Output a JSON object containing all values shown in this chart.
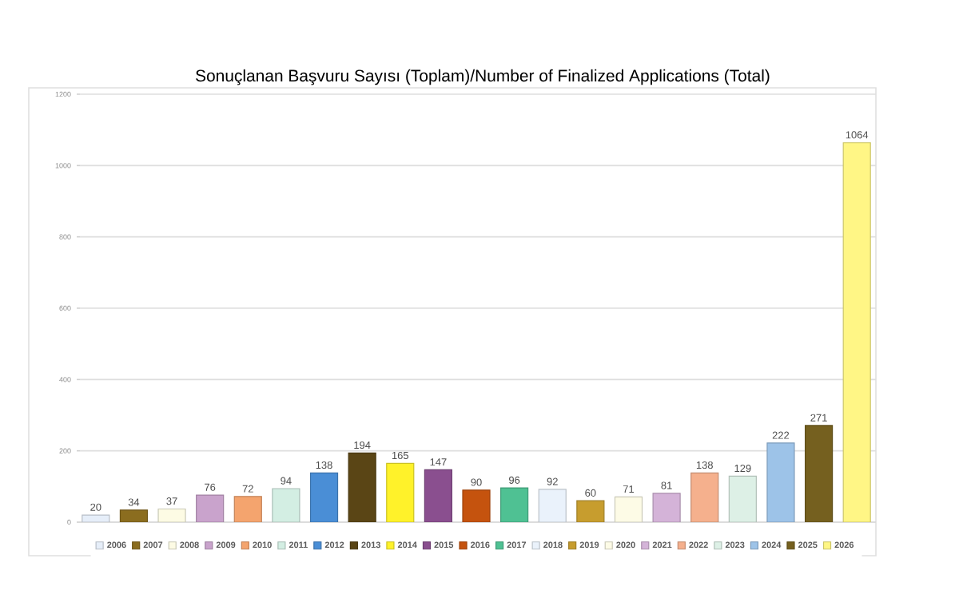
{
  "chart_data": {
    "type": "bar",
    "title": "Sonuçlanan Başvuru Sayısı (Toplam)/Number of Finalized Applications (Total)",
    "categories": [
      null,
      null,
      null,
      null,
      null,
      null,
      null,
      null,
      null,
      null,
      null,
      null,
      null,
      null,
      null,
      null,
      null,
      null,
      null,
      null,
      null
    ],
    "series": [
      {
        "name": "2006",
        "color": "#e6eef9",
        "values": [
          20,
          null,
          null,
          null,
          null,
          null,
          null,
          null,
          null,
          null,
          null,
          null,
          null,
          null,
          null,
          null,
          null,
          null,
          null,
          null,
          null
        ]
      },
      {
        "name": "2007",
        "color": "#8b6d1f",
        "values": [
          null,
          34,
          null,
          null,
          null,
          null,
          null,
          null,
          null,
          null,
          null,
          null,
          null,
          null,
          null,
          null,
          null,
          null,
          null,
          null,
          null
        ]
      },
      {
        "name": "2008",
        "color": "#fdfbe4",
        "values": [
          null,
          null,
          37,
          null,
          null,
          null,
          null,
          null,
          null,
          null,
          null,
          null,
          null,
          null,
          null,
          null,
          null,
          null,
          null,
          null,
          null
        ]
      },
      {
        "name": "2009",
        "color": "#c9a3cc",
        "values": [
          null,
          null,
          null,
          76,
          null,
          null,
          null,
          null,
          null,
          null,
          null,
          null,
          null,
          null,
          null,
          null,
          null,
          null,
          null,
          null,
          null
        ]
      },
      {
        "name": "2010",
        "color": "#f4a46e",
        "values": [
          null,
          null,
          null,
          null,
          72,
          null,
          null,
          null,
          null,
          null,
          null,
          null,
          null,
          null,
          null,
          null,
          null,
          null,
          null,
          null,
          null
        ]
      },
      {
        "name": "2011",
        "color": "#d3eee3",
        "values": [
          null,
          null,
          null,
          null,
          null,
          94,
          null,
          null,
          null,
          null,
          null,
          null,
          null,
          null,
          null,
          null,
          null,
          null,
          null,
          null,
          null
        ]
      },
      {
        "name": "2012",
        "color": "#4a8ed6",
        "values": [
          null,
          null,
          null,
          null,
          null,
          null,
          138,
          null,
          null,
          null,
          null,
          null,
          null,
          null,
          null,
          null,
          null,
          null,
          null,
          null,
          null
        ]
      },
      {
        "name": "2013",
        "color": "#5a4515",
        "values": [
          null,
          null,
          null,
          null,
          null,
          null,
          null,
          194,
          null,
          null,
          null,
          null,
          null,
          null,
          null,
          null,
          null,
          null,
          null,
          null,
          null
        ]
      },
      {
        "name": "2014",
        "color": "#fff22a",
        "values": [
          null,
          null,
          null,
          null,
          null,
          null,
          null,
          null,
          165,
          null,
          null,
          null,
          null,
          null,
          null,
          null,
          null,
          null,
          null,
          null,
          null
        ]
      },
      {
        "name": "2015",
        "color": "#8a4f8f",
        "values": [
          null,
          null,
          null,
          null,
          null,
          null,
          null,
          null,
          null,
          147,
          null,
          null,
          null,
          null,
          null,
          null,
          null,
          null,
          null,
          null,
          null
        ]
      },
      {
        "name": "2016",
        "color": "#c5530e",
        "values": [
          null,
          null,
          null,
          null,
          null,
          null,
          null,
          null,
          null,
          null,
          90,
          null,
          null,
          null,
          null,
          null,
          null,
          null,
          null,
          null,
          null
        ]
      },
      {
        "name": "2017",
        "color": "#4fc193",
        "values": [
          null,
          null,
          null,
          null,
          null,
          null,
          null,
          null,
          null,
          null,
          null,
          96,
          null,
          null,
          null,
          null,
          null,
          null,
          null,
          null,
          null
        ]
      },
      {
        "name": "2018",
        "color": "#eaf2fb",
        "values": [
          null,
          null,
          null,
          null,
          null,
          null,
          null,
          null,
          null,
          null,
          null,
          null,
          92,
          null,
          null,
          null,
          null,
          null,
          null,
          null,
          null
        ]
      },
      {
        "name": "2019",
        "color": "#c79d2e",
        "values": [
          null,
          null,
          null,
          null,
          null,
          null,
          null,
          null,
          null,
          null,
          null,
          null,
          null,
          60,
          null,
          null,
          null,
          null,
          null,
          null,
          null
        ]
      },
      {
        "name": "2020",
        "color": "#fdfbe6",
        "values": [
          null,
          null,
          null,
          null,
          null,
          null,
          null,
          null,
          null,
          null,
          null,
          null,
          null,
          null,
          71,
          null,
          null,
          null,
          null,
          null,
          null
        ]
      },
      {
        "name": "2021",
        "color": "#d4b3d8",
        "values": [
          null,
          null,
          null,
          null,
          null,
          null,
          null,
          null,
          null,
          null,
          null,
          null,
          null,
          null,
          null,
          81,
          null,
          null,
          null,
          null,
          null
        ]
      },
      {
        "name": "2022",
        "color": "#f5b08d",
        "values": [
          null,
          null,
          null,
          null,
          null,
          null,
          null,
          null,
          null,
          null,
          null,
          null,
          null,
          null,
          null,
          null,
          138,
          null,
          null,
          null,
          null
        ]
      },
      {
        "name": "2023",
        "color": "#ddf0e6",
        "values": [
          null,
          null,
          null,
          null,
          null,
          null,
          null,
          null,
          null,
          null,
          null,
          null,
          null,
          null,
          null,
          null,
          null,
          129,
          null,
          null,
          null
        ]
      },
      {
        "name": "2024",
        "color": "#9dc3e8",
        "values": [
          null,
          null,
          null,
          null,
          null,
          null,
          null,
          null,
          null,
          null,
          null,
          null,
          null,
          null,
          null,
          null,
          null,
          null,
          222,
          null,
          null
        ]
      },
      {
        "name": "2025",
        "color": "#75601f",
        "values": [
          null,
          null,
          null,
          null,
          null,
          null,
          null,
          null,
          null,
          null,
          null,
          null,
          null,
          null,
          null,
          null,
          null,
          null,
          null,
          271,
          null
        ]
      },
      {
        "name": "2026",
        "color": "#fff685",
        "values": [
          null,
          null,
          null,
          null,
          null,
          null,
          null,
          null,
          null,
          null,
          null,
          null,
          null,
          null,
          null,
          null,
          null,
          null,
          null,
          null,
          1064
        ]
      }
    ],
    "ylim": [
      0,
      1200
    ],
    "yticks": [
      0,
      200,
      400,
      600,
      800,
      1000,
      1200
    ],
    "tick_labels": "y",
    "grid": "y",
    "legend": "bottom",
    "data_labels": true
  }
}
